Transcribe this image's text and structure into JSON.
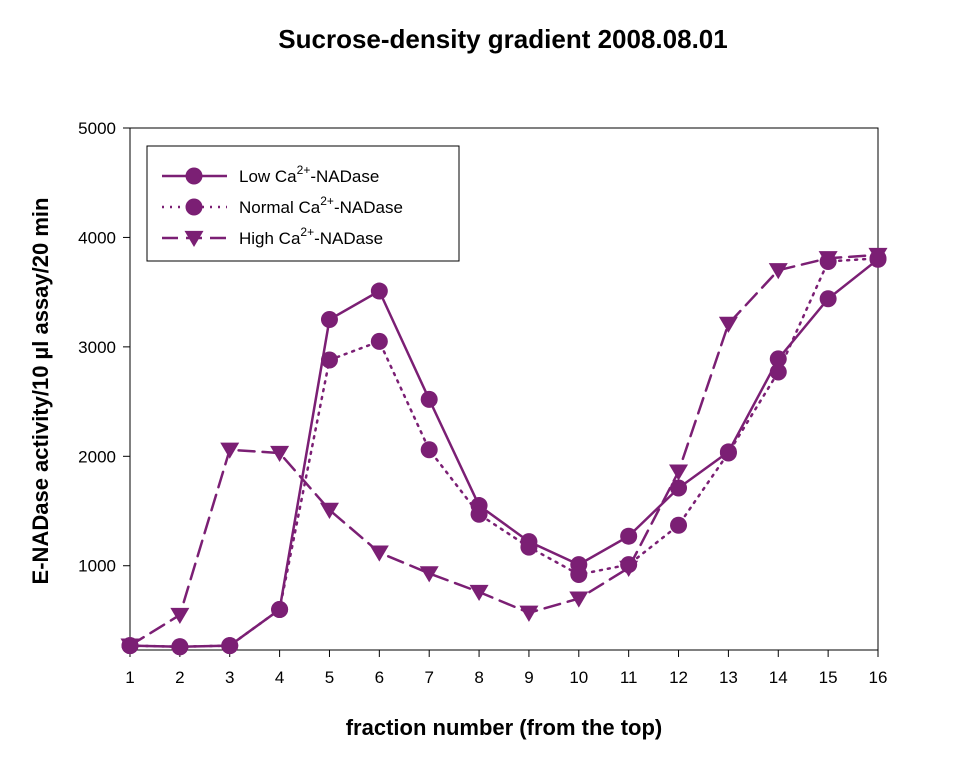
{
  "chart_data": {
    "type": "line",
    "title": "Sucrose-density gradient 2008.08.01",
    "xlabel": "fraction number (from the top)",
    "ylabel": "E-NADase activity/10 µl assay/20 min",
    "x": [
      1,
      2,
      3,
      4,
      5,
      6,
      7,
      8,
      9,
      10,
      11,
      12,
      13,
      14,
      15,
      16
    ],
    "xlim": [
      1,
      16
    ],
    "ylim": [
      230,
      5000
    ],
    "yticks": [
      1000,
      2000,
      3000,
      4000,
      5000
    ],
    "grid": false,
    "legend_position": "top-left",
    "series_color": "#7b1f74",
    "series": [
      {
        "name": "Low Ca2+-NADase",
        "legend_parts": [
          "Low Ca",
          "2+",
          "-NADase"
        ],
        "line_style": "solid",
        "marker": "circle",
        "values": [
          270,
          260,
          270,
          600,
          3250,
          3510,
          2520,
          1550,
          1220,
          1010,
          1270,
          1710,
          2040,
          2890,
          3440,
          3800
        ]
      },
      {
        "name": "Normal Ca2+-NADase",
        "legend_parts": [
          "Normal Ca",
          "2+",
          "-NADase"
        ],
        "line_style": "dotted",
        "marker": "circle",
        "values": [
          270,
          260,
          270,
          600,
          2880,
          3050,
          2060,
          1470,
          1170,
          920,
          1010,
          1370,
          2030,
          2770,
          3780,
          3810
        ]
      },
      {
        "name": "High Ca2+-NADase",
        "legend_parts": [
          "High Ca",
          "2+",
          "-NADase"
        ],
        "line_style": "dashed",
        "marker": "triangle-down",
        "values": [
          270,
          550,
          2060,
          2030,
          1510,
          1120,
          930,
          760,
          570,
          700,
          980,
          1860,
          3210,
          3700,
          3810,
          3840
        ]
      }
    ]
  }
}
